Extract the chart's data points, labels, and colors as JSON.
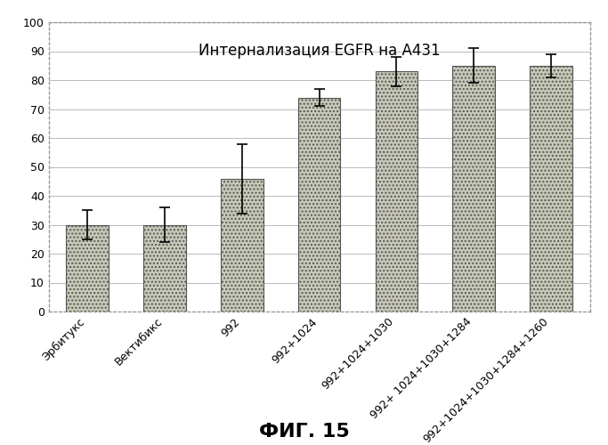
{
  "title": "Интернализация EGFR на А431",
  "categories": [
    "Эрбитукс",
    "Вектибикс",
    "992",
    "992+1024",
    "992+1024+1030",
    "992+ 1024+1030+1284",
    "992+1024+1030+1284+1260"
  ],
  "values": [
    30,
    30,
    46,
    74,
    83,
    85,
    85
  ],
  "errors": [
    5,
    6,
    12,
    3,
    5,
    6,
    4
  ],
  "ylim": [
    0,
    100
  ],
  "yticks": [
    0,
    10,
    20,
    30,
    40,
    50,
    60,
    70,
    80,
    90,
    100
  ],
  "bar_color": "#c8c8b8",
  "hatch": "....",
  "figure_caption": "ФИГ. 15",
  "background_color": "#ffffff",
  "plot_bg_color": "#ffffff",
  "grid_color": "#bbbbbb",
  "bar_edgecolor": "#555555",
  "title_fontsize": 12,
  "tick_fontsize": 9,
  "caption_fontsize": 16,
  "bar_width": 0.55
}
